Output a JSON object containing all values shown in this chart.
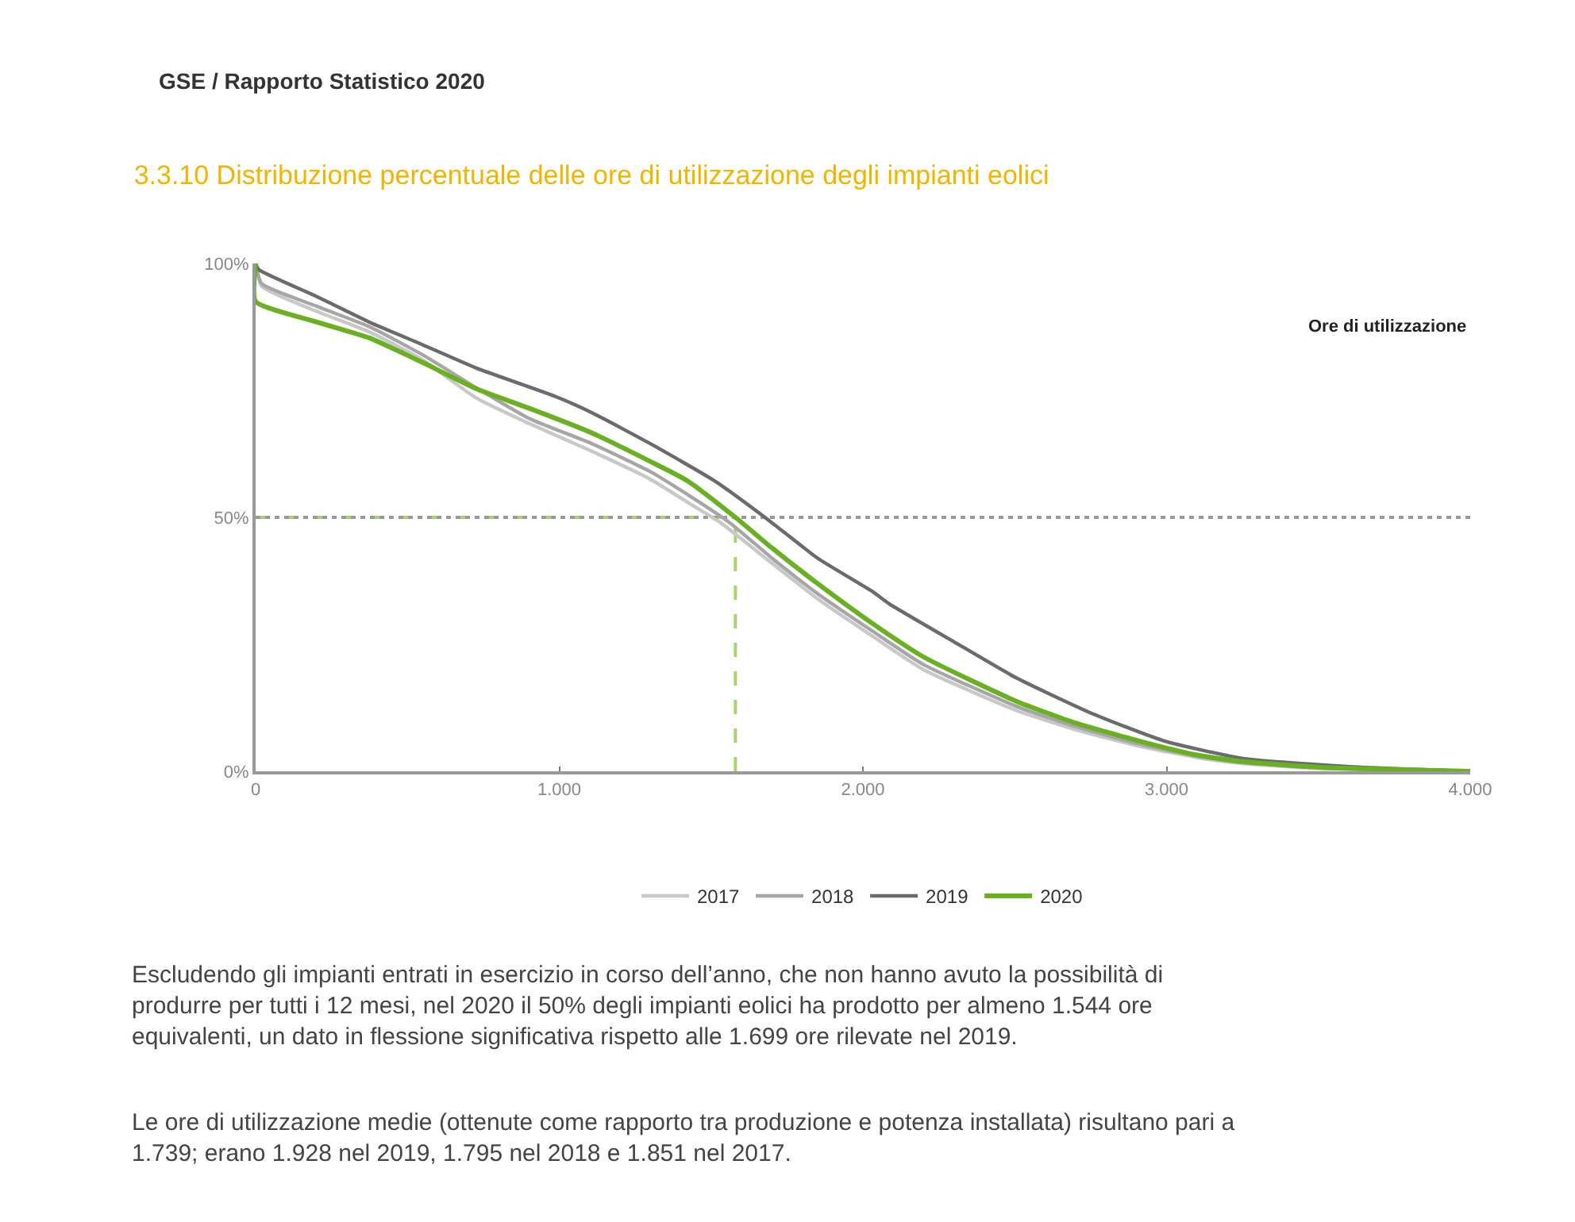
{
  "chart_data": {
    "type": "line",
    "title": "3.3.10 Distribuzione percentuale delle ore di utilizzazione degli impianti eolici",
    "xlabel": "Ore di utilizzazione",
    "annotations": [
      "GSE / Rapporto Statistico 2020",
      "Escludendo gli impianti entrati in esercizio in corso dell’anno, che non hanno avuto la possibilità di produrre per tutti i 12 mesi, nel 2020 il 50% degli impianti eolici ha prodotto per almeno 1.544 ore equivalenti, un dato in flessione significativa rispetto alle 1.699 ore rilevate nel 2019.",
      "Le ore di utilizzazione medie (ottenute come rapporto tra produzione e potenza installata) risultano pari a 1.739; erano 1.928 nel 2019, 1.795 nel 2018 e 1.851 nel 2017."
    ],
    "series": [
      {
        "name": "2017",
        "color": "#c8c8c8",
        "x": [
          0,
          20,
          204,
          376,
          550,
          727,
          900,
          1108,
          1300,
          1422,
          1530,
          1700,
          1850,
          2034,
          2200,
          2505,
          2700,
          2907,
          3100,
          3252,
          3500,
          4000
        ],
        "values": [
          100,
          95.5,
          90.5,
          86.5,
          81,
          73.5,
          68.5,
          63,
          57.5,
          53,
          49,
          41,
          34,
          26.5,
          20,
          12,
          8.2,
          5,
          2.7,
          1.5,
          0.6,
          0
        ]
      },
      {
        "name": "2018",
        "color": "#a6a6a6",
        "x": [
          0,
          20,
          204,
          376,
          550,
          727,
          900,
          1108,
          1300,
          1422,
          1560,
          1700,
          1850,
          2034,
          2200,
          2505,
          2700,
          2907,
          3100,
          3252,
          3500,
          4000
        ],
        "values": [
          100,
          96,
          91.5,
          87.5,
          82,
          75.5,
          69.5,
          64.5,
          59,
          54.5,
          49,
          42,
          35,
          27.5,
          21,
          12.8,
          8.8,
          5.4,
          3,
          1.7,
          0.7,
          0
        ]
      },
      {
        "name": "2019",
        "color": "#6b6b6b",
        "x": [
          0,
          10,
          204,
          376,
          550,
          727,
          988,
          1108,
          1300,
          1511,
          1684,
          1850,
          2034,
          2086,
          2300,
          2505,
          2750,
          2991,
          3252,
          3603,
          4000
        ],
        "values": [
          100,
          98.8,
          93.4,
          88.4,
          84,
          79.4,
          73.8,
          70.6,
          64.5,
          57.2,
          49.7,
          42,
          35.3,
          33,
          25.5,
          18.4,
          11.5,
          6,
          2.5,
          0.9,
          0
        ]
      },
      {
        "name": "2020",
        "color": "#6ab023",
        "x": [
          0,
          0,
          200,
          376,
          550,
          727,
          900,
          1108,
          1300,
          1422,
          1580,
          1700,
          1850,
          2034,
          2200,
          2505,
          2700,
          2907,
          3100,
          3252,
          3500,
          4000
        ],
        "values": [
          100,
          92.5,
          88.5,
          85.3,
          80.5,
          75.3,
          71.5,
          66.6,
          61,
          57.2,
          50,
          44,
          37,
          29,
          22.5,
          13.8,
          9.5,
          6,
          3.2,
          1.9,
          0.8,
          0
        ]
      }
    ],
    "xlim": [
      0,
      4000
    ],
    "xticks": [
      {
        "value": 0,
        "label": "0"
      },
      {
        "value": 1000,
        "label": "1.000"
      },
      {
        "value": 2000,
        "label": "2.000"
      },
      {
        "value": 3000,
        "label": "3.000"
      },
      {
        "value": 4000,
        "label": "4.000"
      }
    ],
    "ylim": [
      0,
      100
    ],
    "yticks": [
      {
        "value": 0,
        "label": "0%"
      },
      {
        "value": 50,
        "label": "50%"
      },
      {
        "value": 100,
        "label": "100%"
      }
    ],
    "ref_lines": [
      {
        "axis": "x",
        "value": 1580,
        "color": "#a6d36a",
        "line_style": "dashed"
      },
      {
        "axis": "y",
        "value": 50,
        "color": "#a6d36a",
        "line_style": "dashed"
      }
    ],
    "grid": "y",
    "legend": "bottom",
    "marker": "none",
    "line_style": "solid"
  }
}
